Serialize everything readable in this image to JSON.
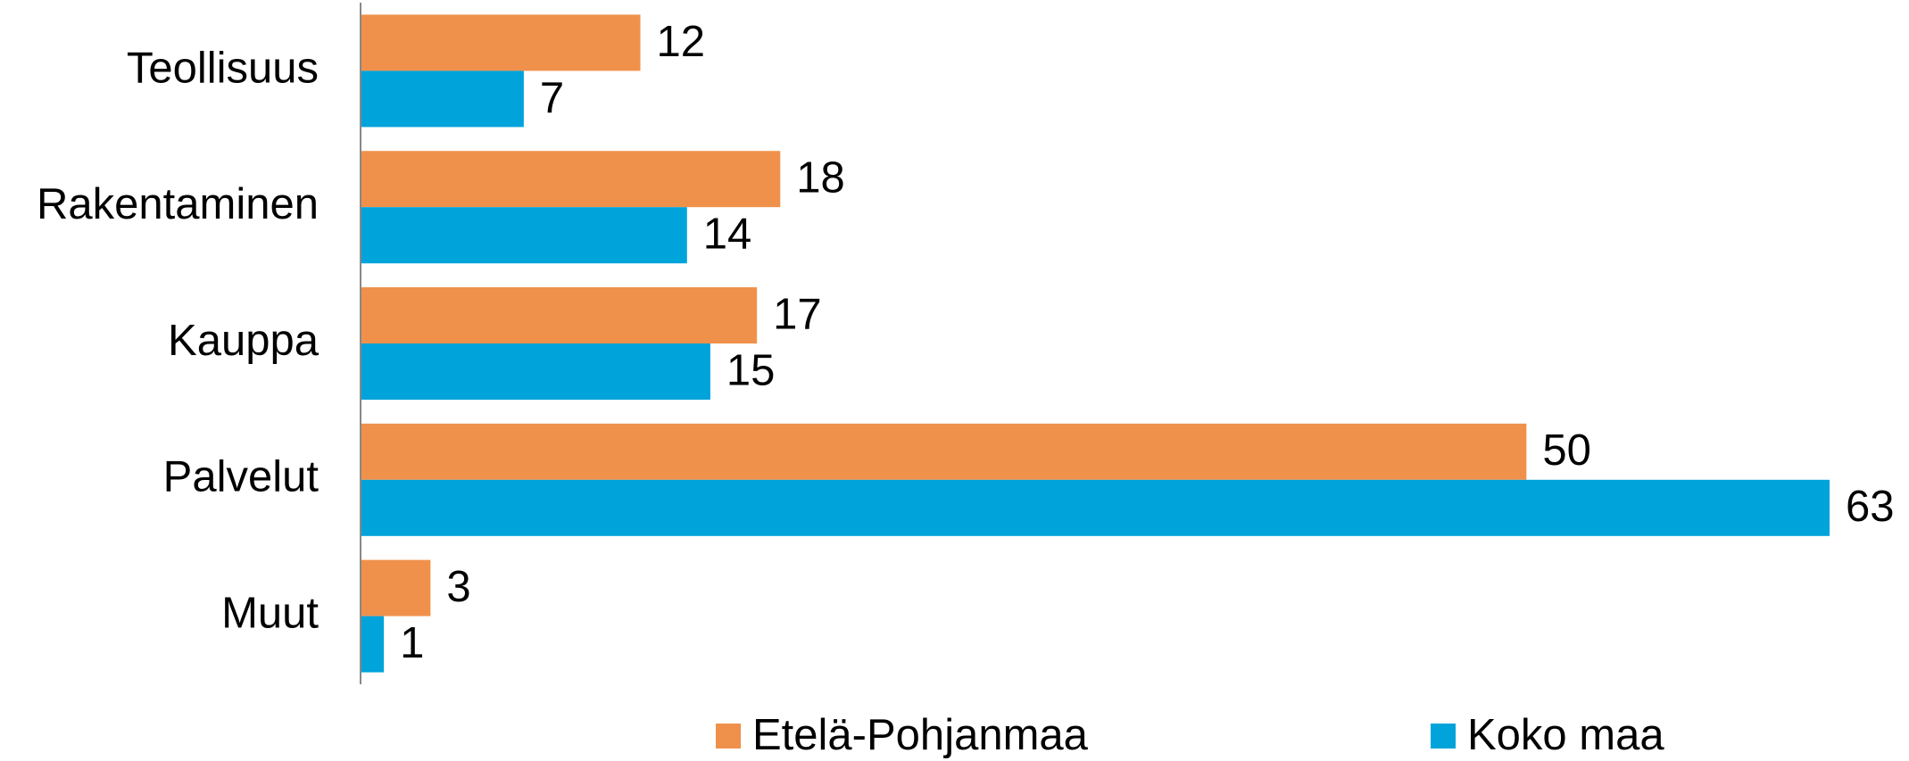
{
  "chart_data": {
    "type": "barh",
    "categories": [
      "Teollisuus",
      "Rakentaminen",
      "Kauppa",
      "Palvelut",
      "Muut"
    ],
    "series": [
      {
        "name": "Etelä-Pohjanmaa",
        "color": "#f0914b",
        "values": [
          12,
          18,
          17,
          50,
          3
        ]
      },
      {
        "name": "Koko maa",
        "color": "#00a3da",
        "values": [
          7,
          14,
          15,
          63,
          1
        ]
      }
    ],
    "xlim": [
      0,
      63
    ],
    "legend": "bottom"
  }
}
